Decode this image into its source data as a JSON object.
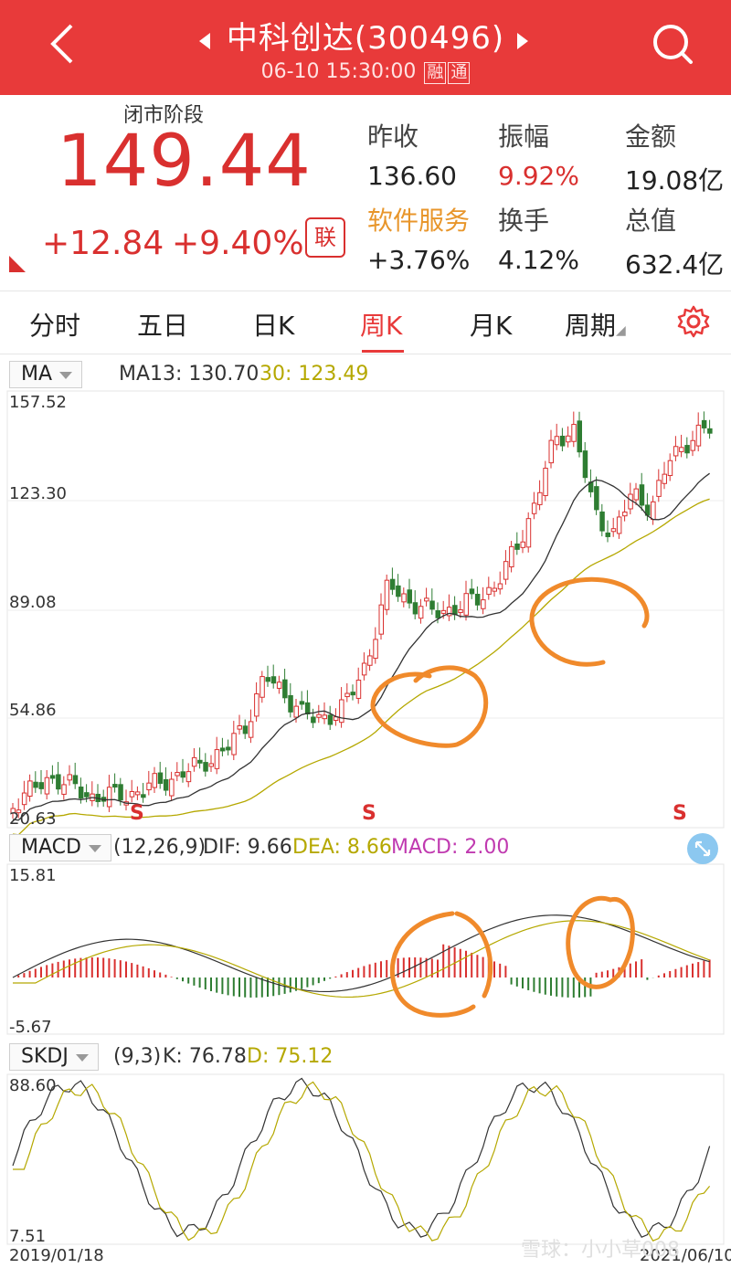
{
  "header": {
    "title": "中科创达(300496)",
    "datetime": "06-10 15:30:00",
    "badge_rong": "融",
    "badge_tong": "通"
  },
  "quote": {
    "stage": "闭市阶段",
    "price": "149.44",
    "change": "+12.84",
    "change_pct": "+9.40%",
    "lian": "联",
    "cells": [
      {
        "label": "昨收",
        "value": "136.60"
      },
      {
        "label": "振幅",
        "value": "9.92%"
      },
      {
        "label": "金额",
        "value": "19.08亿"
      },
      {
        "label": "软件服务",
        "value": "+3.76%"
      },
      {
        "label": "换手",
        "value": "4.12%"
      },
      {
        "label": "总值",
        "value": "632.4亿"
      }
    ]
  },
  "colors": {
    "up": "#d9302f",
    "down": "#2e7d32",
    "ma13": "#333333",
    "ma30": "#b5a800",
    "macd_hist": "#d9302f",
    "circle": "#f08a2b",
    "sector": "#e8962b",
    "macd_label": "#c03ab0"
  },
  "tabs": [
    {
      "label": "分时"
    },
    {
      "label": "五日"
    },
    {
      "label": "日K"
    },
    {
      "label": "周K",
      "active": true
    },
    {
      "label": "月K"
    },
    {
      "label": "周期"
    }
  ],
  "ma_panel": {
    "selector": "MA",
    "ma13": "MA13: 130.70",
    "ma30": "30: 123.49",
    "axis": [
      "157.52",
      "123.30",
      "89.08",
      "54.86",
      "20.63"
    ],
    "signal": "S"
  },
  "macd_panel": {
    "selector": "MACD",
    "params": "(12,26,9)",
    "dif": "DIF: 9.66",
    "dea": "DEA: 8.66",
    "macd": "MACD: 2.00",
    "axis_top": "15.81",
    "axis_bottom": "-5.67"
  },
  "kdj_panel": {
    "selector": "SKDJ",
    "params": "(9,3)",
    "k": "K: 76.78",
    "d": "D: 75.12",
    "axis_top": "88.60",
    "axis_bottom": "7.51"
  },
  "dates": {
    "start": "2019/01/18",
    "end": "2021/06/10"
  },
  "watermark": "雪球：小小草008"
}
